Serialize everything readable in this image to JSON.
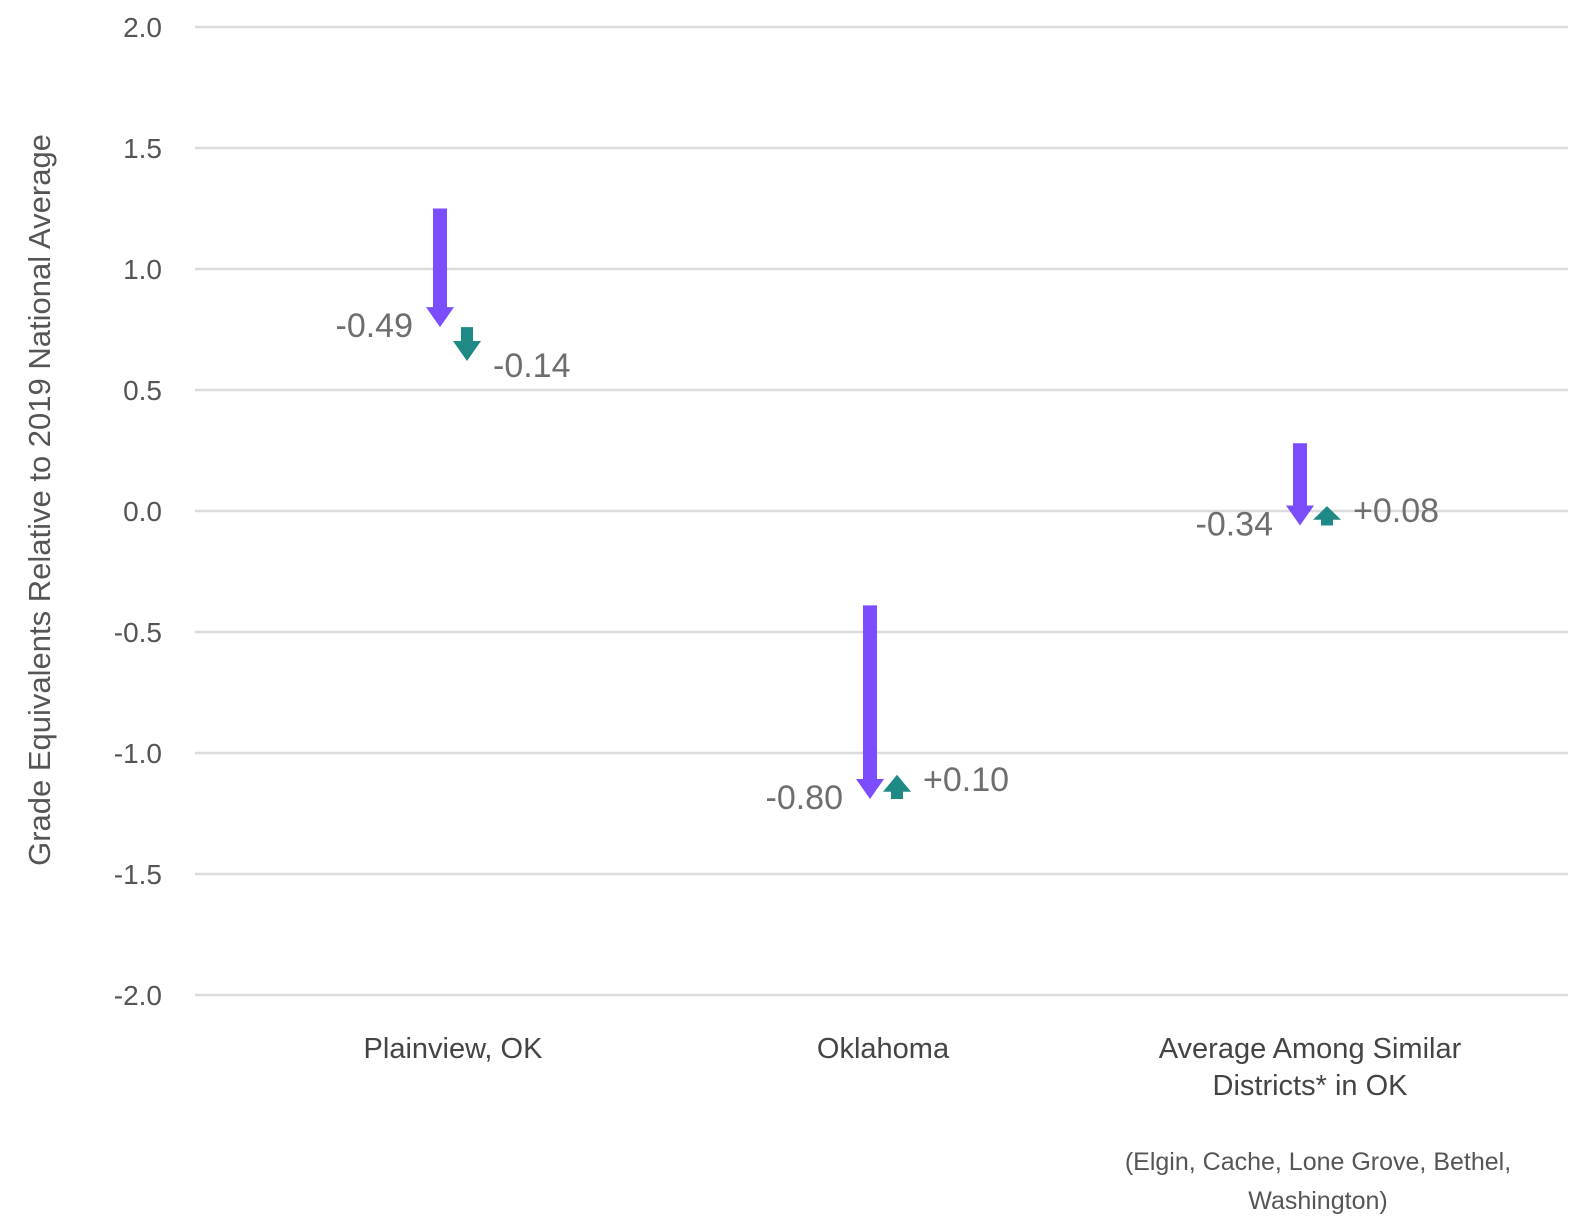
{
  "chart_data": {
    "type": "arrow",
    "ylabel": "Grade Equivalents Relative to 2019 National Average",
    "ylim": [
      -2.0,
      2.0
    ],
    "yticks": [
      "2.0",
      "1.5",
      "1.0",
      "0.5",
      "0.0",
      "-0.5",
      "-1.0",
      "-1.5",
      "-2.0"
    ],
    "grid": true,
    "colors": {
      "first_change": "#7c4dff",
      "second_change": "#1f8a85"
    },
    "categories": [
      {
        "label": [
          "Plainview, OK"
        ],
        "start": 1.25,
        "first_change": -0.49,
        "first_label": "-0.49",
        "second_change": -0.14,
        "second_label": "-0.14"
      },
      {
        "label": [
          "Oklahoma"
        ],
        "start": -0.39,
        "first_change": -0.8,
        "first_label": "-0.80",
        "second_change": 0.1,
        "second_label": "+0.10"
      },
      {
        "label": [
          "Average Among Similar",
          "Districts* in OK"
        ],
        "note": [
          "(Elgin, Cache, Lone Grove, Bethel,",
          "Washington)"
        ],
        "start": 0.28,
        "first_change": -0.34,
        "first_label": "-0.34",
        "second_change": 0.08,
        "second_label": "+0.08"
      }
    ]
  }
}
